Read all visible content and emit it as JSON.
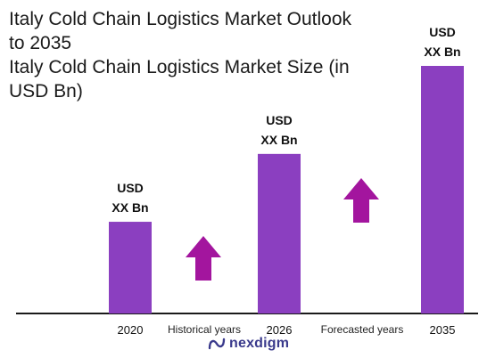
{
  "title_lines": [
    "Italy Cold Chain Logistics Market Outlook",
    "to 2035",
    "Italy Cold Chain Logistics Market Size (in",
    "USD Bn)"
  ],
  "chart_data": {
    "type": "bar",
    "title": "Italy Cold Chain Logistics Market Outlook to 2035",
    "subtitle": "Italy Cold Chain Logistics Market Size (in USD Bn)",
    "categories": [
      "2020",
      "2026",
      "2035"
    ],
    "values": [
      1.0,
      1.74,
      2.7
    ],
    "value_labels": [
      [
        "USD",
        "XX Bn"
      ],
      [
        "USD",
        "XX Bn"
      ],
      [
        "USD",
        "XX Bn"
      ]
    ],
    "period_labels": [
      "Historical years",
      "Forecasted years"
    ],
    "bar_color": "#8b3fc0",
    "arrow_color": "#a3159e",
    "axis_color": "#1a1a1a",
    "xlabel": "",
    "ylabel": ""
  },
  "brand": {
    "name": "nexdigm",
    "color": "#3a3a8c"
  }
}
